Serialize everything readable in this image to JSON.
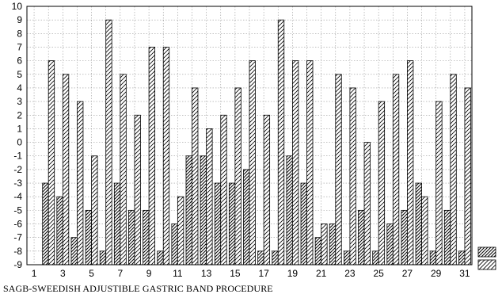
{
  "chart_data": {
    "type": "bar",
    "caption": "SAGB-SWEEDISH ADJUSTIBLE GASTRIC BAND PROCEDURE",
    "x": [
      1,
      2,
      3,
      4,
      5,
      6,
      7,
      8,
      9,
      10,
      11,
      12,
      13,
      14,
      15,
      16,
      17,
      18,
      19,
      20,
      21,
      22,
      23,
      24,
      25,
      26,
      27,
      28,
      29,
      30,
      31
    ],
    "x_tick_labels": [
      "1",
      "3",
      "5",
      "7",
      "9",
      "11",
      "13",
      "15",
      "17",
      "19",
      "21",
      "23",
      "25",
      "27",
      "29",
      "31"
    ],
    "ylim": [
      -9,
      10
    ],
    "y_ticks": [
      -9,
      -8,
      -7,
      -6,
      -5,
      -4,
      -3,
      -2,
      -1,
      0,
      1,
      2,
      3,
      4,
      5,
      6,
      7,
      8,
      9,
      10
    ],
    "baseline": -9,
    "grid": true,
    "series": [
      {
        "values": [
          null,
          -3,
          -4,
          -7,
          -5,
          -8,
          -3,
          -5,
          -5,
          -8,
          -6,
          -1,
          -1,
          -3,
          -3,
          -2,
          -8,
          -8,
          -1,
          -3,
          -7,
          -6,
          -8,
          -5,
          -8,
          -6,
          -5,
          -3,
          -8,
          -5,
          -8
        ],
        "hatch": "dense-diagonal"
      },
      {
        "values": [
          null,
          6,
          5,
          3,
          -1,
          9,
          5,
          2,
          7,
          7,
          -4,
          4,
          1,
          2,
          4,
          6,
          2,
          9,
          6,
          6,
          -6,
          5,
          4,
          0,
          3,
          5,
          6,
          -4,
          3,
          5,
          4
        ],
        "hatch": "light-diagonal"
      }
    ]
  }
}
